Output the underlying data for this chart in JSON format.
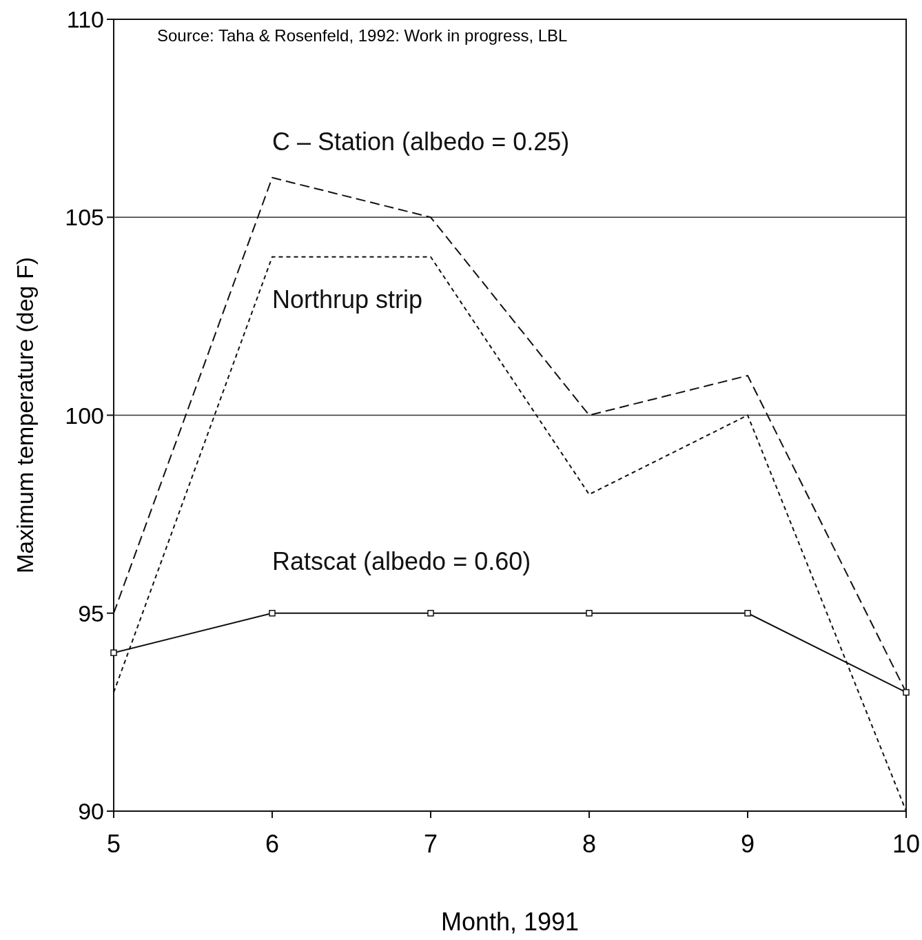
{
  "chart_data": {
    "type": "line",
    "xlabel": "Month, 1991",
    "ylabel": "Maximum temperature (deg F)",
    "x": [
      5,
      6,
      7,
      8,
      9,
      10
    ],
    "xlim": [
      5,
      10
    ],
    "xticks": [
      5,
      6,
      7,
      8,
      9,
      10
    ],
    "ylim": [
      90,
      110
    ],
    "yticks": [
      90,
      95,
      100,
      105,
      110
    ],
    "series": [
      {
        "name": "C – Station (albedo = 0.25)",
        "color": "#111111",
        "line_style": "dashed",
        "marker": "none",
        "values": [
          95,
          106,
          105,
          100,
          101,
          93
        ]
      },
      {
        "name": "Northrup strip",
        "color": "#111111",
        "line_style": "dotted",
        "marker": "none",
        "values": [
          93,
          104,
          104,
          98,
          100,
          90
        ]
      },
      {
        "name": "Ratscat (albedo = 0.60)",
        "color": "#111111",
        "line_style": "solid",
        "marker": "square",
        "values": [
          94,
          95,
          95,
          95,
          95,
          93
        ]
      }
    ],
    "ref_lines": [
      {
        "axis": "y",
        "value": 105,
        "color": "#333333",
        "line_style": "solid"
      },
      {
        "axis": "y",
        "value": 100,
        "color": "#333333",
        "line_style": "solid"
      }
    ],
    "annotations": [
      "Source: Taha & Rosenfeld, 1992: Work in progress, LBL"
    ],
    "grid": false
  }
}
